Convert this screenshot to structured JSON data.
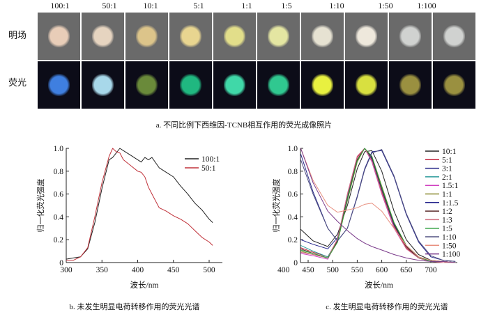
{
  "panel_a": {
    "ratios": [
      "100:1",
      "50:1",
      "10:1",
      "5:1",
      "1:1",
      "1:5",
      "1:10",
      "1:50",
      "1:100"
    ],
    "row_labels": [
      "明场",
      "荧光"
    ],
    "bright_field_colors": [
      "#e8cdb8",
      "#e6d4c0",
      "#dcc48a",
      "#e8d590",
      "#e2de8a",
      "#e4e6a2",
      "#e6e2d2",
      "#eee8dc",
      "#d0d2d0"
    ],
    "fluorescence_colors": [
      "#3f7fe0",
      "#a8d8ea",
      "#6a8a3a",
      "#20b880",
      "#40d8a8",
      "#30c890",
      "#e8f040",
      "#d8e040",
      "#9a9040"
    ],
    "caption": "a. 不同比例下西维因-TCNB相互作用的荧光成像照片"
  },
  "chart_data": [
    {
      "type": "line",
      "xlabel": "波长/nm",
      "ylabel": "归一化荧光强度",
      "xlim": [
        300,
        518
      ],
      "ylim": [
        0,
        1.0
      ],
      "xticks": [
        300,
        350,
        400,
        450,
        500
      ],
      "yticks": [
        "0",
        "0.2",
        "0.4",
        "0.6",
        "0.8",
        "1.0"
      ],
      "legend": "top-right",
      "x": [
        300,
        310,
        320,
        330,
        340,
        350,
        360,
        365,
        370,
        375,
        380,
        390,
        400,
        405,
        410,
        415,
        420,
        430,
        440,
        450,
        460,
        470,
        480,
        490,
        500,
        505
      ],
      "series": [
        {
          "name": "100:1",
          "color": "#222222",
          "values": [
            0.03,
            0.04,
            0.05,
            0.12,
            0.35,
            0.65,
            0.9,
            0.92,
            0.96,
            1.0,
            0.98,
            0.94,
            0.9,
            0.88,
            0.92,
            0.9,
            0.92,
            0.83,
            0.79,
            0.75,
            0.67,
            0.6,
            0.52,
            0.46,
            0.38,
            0.35
          ]
        },
        {
          "name": "50:1",
          "color": "#c0323a",
          "values": [
            0.02,
            0.02,
            0.05,
            0.13,
            0.4,
            0.7,
            0.93,
            1.0,
            0.97,
            0.96,
            0.9,
            0.85,
            0.8,
            0.79,
            0.75,
            0.66,
            0.6,
            0.48,
            0.45,
            0.41,
            0.38,
            0.34,
            0.28,
            0.22,
            0.18,
            0.15
          ]
        }
      ],
      "caption": "b. 未发生明显电荷转移作用的荧光光谱"
    },
    {
      "type": "line",
      "xlabel": "波长/nm",
      "ylabel": "归一化荧光强度",
      "xlim": [
        434,
        754
      ],
      "ylim": [
        0,
        1.0
      ],
      "xticks": [
        400,
        450,
        500,
        550,
        600,
        650,
        700
      ],
      "yticks": [
        "0",
        "0.2",
        "0.4",
        "0.6",
        "0.8",
        "1.0"
      ],
      "legend": "right",
      "x": [
        435,
        460,
        490,
        510,
        530,
        550,
        565,
        580,
        600,
        625,
        650,
        675,
        700,
        725,
        750
      ],
      "series": [
        {
          "name": "10:1",
          "color": "#222222",
          "values": [
            0.29,
            0.19,
            0.14,
            0.25,
            0.5,
            0.82,
            0.97,
            0.98,
            0.8,
            0.45,
            0.2,
            0.07,
            0.02,
            0.01,
            0
          ]
        },
        {
          "name": "5:1",
          "color": "#c0203a",
          "values": [
            0.13,
            0.09,
            0.05,
            0.2,
            0.58,
            0.92,
            1.0,
            0.9,
            0.62,
            0.32,
            0.13,
            0.04,
            0.01,
            0.01,
            0
          ]
        },
        {
          "name": "3:1",
          "color": "#2a2a8a",
          "values": [
            0.95,
            0.62,
            0.3,
            0.19,
            0.3,
            0.58,
            0.82,
            0.97,
            0.98,
            0.75,
            0.42,
            0.18,
            0.05,
            0.02,
            0.01
          ]
        },
        {
          "name": "2:1",
          "color": "#2a9a9a",
          "values": [
            0.15,
            0.1,
            0.05,
            0.2,
            0.57,
            0.9,
            1.0,
            0.91,
            0.64,
            0.33,
            0.14,
            0.04,
            0.01,
            0.01,
            0
          ]
        },
        {
          "name": "1.5:1",
          "color": "#d040c0",
          "values": [
            0.08,
            0.06,
            0.03,
            0.2,
            0.6,
            0.93,
            1.0,
            0.88,
            0.6,
            0.3,
            0.12,
            0.04,
            0.01,
            0,
            0
          ]
        },
        {
          "name": "1:1",
          "color": "#8a8a30",
          "values": [
            0.1,
            0.07,
            0.04,
            0.18,
            0.54,
            0.88,
            1.0,
            0.93,
            0.67,
            0.35,
            0.15,
            0.05,
            0.01,
            0.01,
            0
          ]
        },
        {
          "name": "1:1.5",
          "color": "#20208a",
          "values": [
            0.2,
            0.16,
            0.12,
            0.22,
            0.56,
            0.9,
            1.0,
            0.91,
            0.64,
            0.33,
            0.14,
            0.04,
            0.01,
            0.01,
            0
          ]
        },
        {
          "name": "1:2",
          "color": "#5a2a2a",
          "values": [
            0.12,
            0.08,
            0.04,
            0.19,
            0.56,
            0.9,
            1.0,
            0.92,
            0.65,
            0.34,
            0.14,
            0.04,
            0.01,
            0.01,
            0
          ]
        },
        {
          "name": "1:3",
          "color": "#d07080",
          "values": [
            0.09,
            0.07,
            0.04,
            0.21,
            0.6,
            0.93,
            1.0,
            0.89,
            0.61,
            0.31,
            0.12,
            0.04,
            0.01,
            0,
            0
          ]
        },
        {
          "name": "1:5",
          "color": "#30a040",
          "values": [
            0.11,
            0.08,
            0.04,
            0.18,
            0.55,
            0.89,
            1.0,
            0.93,
            0.66,
            0.35,
            0.15,
            0.05,
            0.01,
            0.01,
            0
          ]
        },
        {
          "name": "1:10",
          "color": "#505080",
          "values": [
            0.9,
            0.6,
            0.3,
            0.19,
            0.3,
            0.57,
            0.81,
            0.96,
            0.99,
            0.76,
            0.43,
            0.19,
            0.06,
            0.02,
            0.01
          ]
        },
        {
          "name": "1:50",
          "color": "#e89080",
          "values": [
            1.0,
            0.72,
            0.5,
            0.44,
            0.46,
            0.48,
            0.51,
            0.52,
            0.45,
            0.3,
            0.15,
            0.05,
            0.02,
            0.01,
            0
          ]
        },
        {
          "name": "1:100",
          "color": "#7a3a8a",
          "values": [
            1.0,
            0.7,
            0.45,
            0.36,
            0.28,
            0.21,
            0.17,
            0.14,
            0.11,
            0.07,
            0.04,
            0.02,
            0.01,
            0.01,
            0
          ]
        }
      ],
      "caption": "c. 发生明显电荷转移作用的荧光光谱"
    }
  ]
}
